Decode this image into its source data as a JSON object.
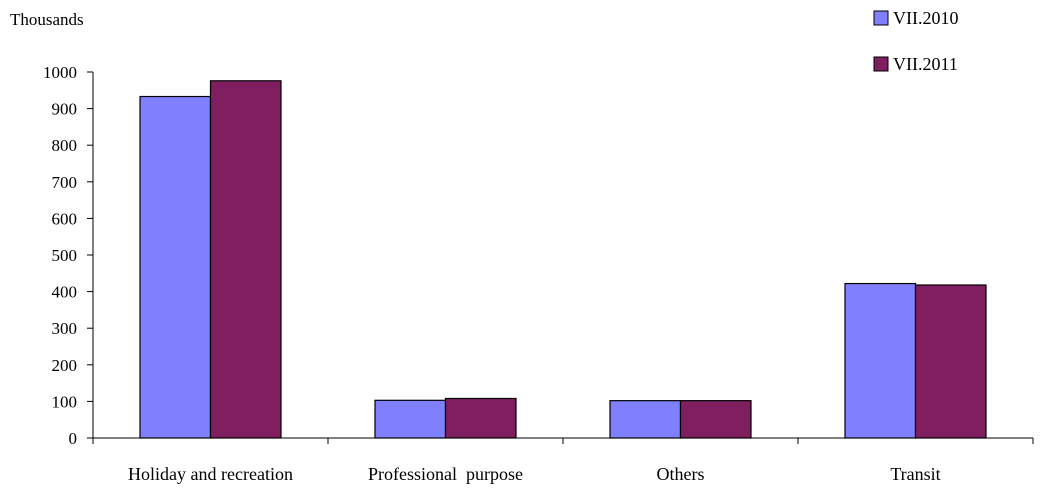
{
  "chart_data": {
    "type": "bar",
    "unit_label": "Thousands",
    "categories": [
      "Holiday and recreation",
      "Professional  purpose",
      "Others",
      "Transit"
    ],
    "series": [
      {
        "name": "VII.2010",
        "color": "#8080ff",
        "values": [
          933,
          103,
          102,
          422
        ]
      },
      {
        "name": "VII.2011",
        "color": "#7f1f5f",
        "values": [
          976,
          108,
          102,
          418
        ]
      }
    ],
    "yticks": [
      0,
      100,
      200,
      300,
      400,
      500,
      600,
      700,
      800,
      900,
      1000
    ],
    "ylim": [
      0,
      1000
    ],
    "grid": false,
    "legend_position": "top-right"
  }
}
